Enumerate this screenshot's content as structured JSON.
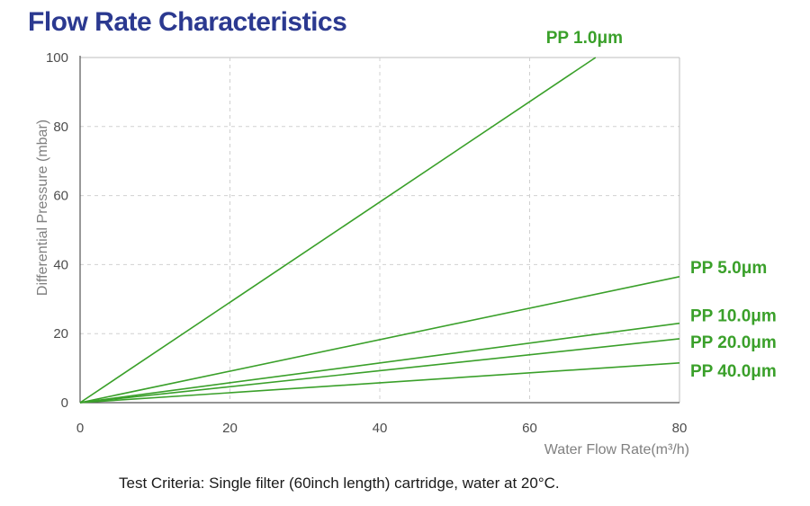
{
  "title": "Flow Rate Characteristics",
  "footnote": "Test Criteria: Single filter (60inch length) cartridge, water at 20°C.",
  "colors": {
    "title": "#2b3990",
    "series": "#3aa02a",
    "grid": "#d0d0d0",
    "axis": "#555555"
  },
  "chart_data": {
    "type": "line",
    "xlabel": "Water Flow Rate(m³/h)",
    "ylabel": "Differential Pressure (mbar)",
    "xlim": [
      0,
      80
    ],
    "ylim": [
      0,
      100
    ],
    "xticks": [
      0,
      20,
      40,
      60,
      80
    ],
    "yticks": [
      0,
      20,
      40,
      60,
      80,
      100
    ],
    "grid": true,
    "legend": "labels at line ends (right)",
    "series": [
      {
        "name": "PP 1.0μm",
        "x": [
          0,
          68.8
        ],
        "y": [
          0,
          100
        ]
      },
      {
        "name": "PP 5.0μm",
        "x": [
          0,
          80
        ],
        "y": [
          0,
          36.5
        ]
      },
      {
        "name": "PP 10.0μm",
        "x": [
          0,
          80
        ],
        "y": [
          0,
          23
        ]
      },
      {
        "name": "PP 20.0μm",
        "x": [
          0,
          80
        ],
        "y": [
          0,
          18.5
        ]
      },
      {
        "name": "PP 40.0μm",
        "x": [
          0,
          80
        ],
        "y": [
          0,
          11.5
        ]
      }
    ]
  }
}
